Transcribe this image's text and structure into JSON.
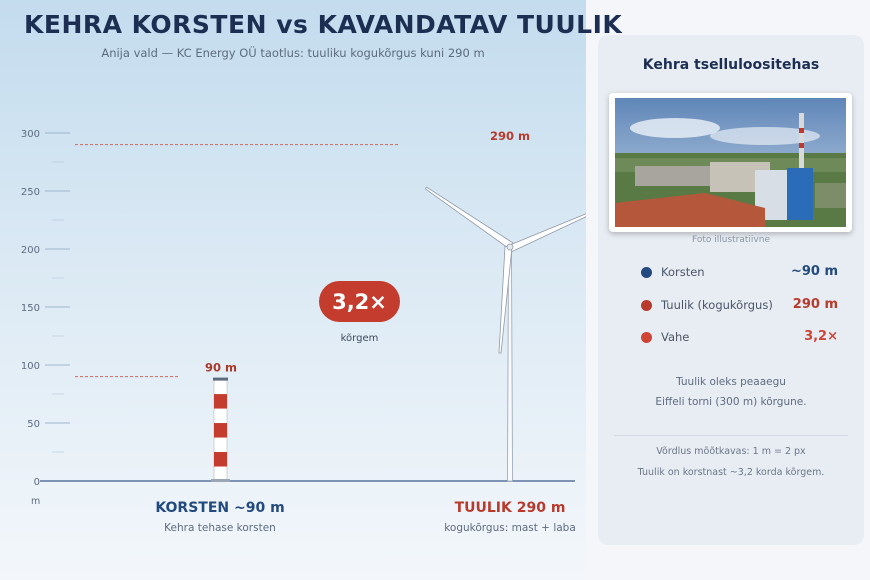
{
  "header": {
    "title": "KEHRA KORSTEN vs KAVANDATAV TUULIK",
    "subtitle": "Anija vald — KC Energy OÜ taotlus: tuuliku kogukõrgus kuni 290 m"
  },
  "chart_data": {
    "type": "bar",
    "categories": [
      "KORSTEN ~90 m",
      "TUULIK 290 m"
    ],
    "values": [
      90,
      290
    ],
    "ylim": [
      0,
      300
    ],
    "y_ticks": [
      0,
      50,
      100,
      150,
      200,
      250,
      300
    ],
    "y_unit": "m",
    "value_labels": [
      "90 m",
      "290 m"
    ],
    "ratio_badge": "3,2×",
    "ratio_caption": "kõrgem",
    "grid": false
  },
  "bottom": {
    "chimney_title": "KORSTEN ~90 m",
    "chimney_sub": "Kehra tehase korsten",
    "turbine_title": "TUULIK 290 m",
    "turbine_sub": "kogukõrgus: mast + laba"
  },
  "card": {
    "title": "Kehra tselluloositehas",
    "photo_caption": "Foto illustratiivne",
    "legend": [
      {
        "label": "Korsten",
        "value": "~90 m",
        "color": "#234a7e",
        "value_color": "#234a7e"
      },
      {
        "label": "Tuulik (kogukõrgus)",
        "value": "290 m",
        "color": "#b83a2c",
        "value_color": "#b83a2c"
      },
      {
        "label": "Vahe",
        "value": "3,2×",
        "color": "#d04436",
        "value_color": "#d04436"
      }
    ],
    "note_line1": "Tuulik oleks peaaegu",
    "note_line2": "Eiffeli torni (300 m) kõrgune.",
    "foot_line1": "Võrdlus mõõtkavas: 1 m = 2 px",
    "foot_line2": "Tuulik on korstnast ~3,2 korda kõrgem."
  },
  "colors": {
    "navy": "#1c2f52",
    "chimney_red": "#c43c2e",
    "accent_red": "#b83a2c",
    "axis_blue": "#3d5a8a"
  }
}
